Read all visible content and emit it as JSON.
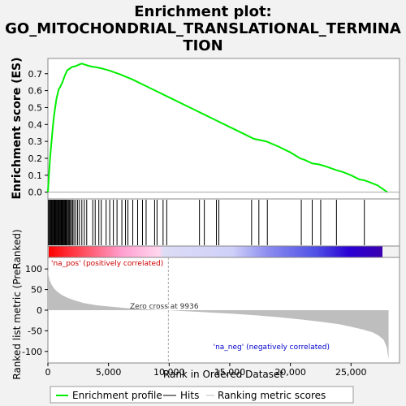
{
  "title_line1": "Enrichment plot:",
  "title_line2": "GO_MITOCHONDRIAL_TRANSLATIONAL_TERMINA",
  "title_line3": "TION",
  "annotations": {
    "pos": "'na_pos' (positively correlated)",
    "neg": "'na_neg' (negatively correlated)",
    "zero": "Zero cross at 9936"
  },
  "legend": {
    "profile": "Enrichment profile",
    "hits": "Hits",
    "metric": "Ranking metric scores"
  },
  "colors": {
    "profile": "#00ee00",
    "metric_fill": "#bebebe",
    "pos_text": "#cc0000",
    "neg_text": "#0000cc"
  },
  "chart_data": [
    {
      "type": "line",
      "name": "enrichment-profile",
      "ylabel": "Enrichment score (ES)",
      "xlim": [
        0,
        29000
      ],
      "ylim": [
        -0.04,
        0.79
      ],
      "yticks": [
        0.0,
        0.1,
        0.2,
        0.3,
        0.4,
        0.5,
        0.6,
        0.7
      ],
      "ytick_labels": [
        "0.0",
        "0.1",
        "0.2",
        "0.3",
        "0.4",
        "0.5",
        "0.6",
        "0.7"
      ],
      "x": [
        0,
        100,
        200,
        300,
        400,
        500,
        600,
        700,
        800,
        900,
        1000,
        1200,
        1400,
        1600,
        1800,
        2000,
        2300,
        2600,
        2800,
        3000,
        3300,
        3600,
        4000,
        4500,
        5000,
        6000,
        7000,
        8000,
        9000,
        10000,
        11000,
        12000,
        13000,
        14000,
        15000,
        16000,
        17000,
        18000,
        19000,
        20000,
        20800,
        21200,
        21800,
        22300,
        22800,
        23400,
        23800,
        24300,
        25000,
        25700,
        26100,
        26500,
        27200,
        28000
      ],
      "y": [
        0.0,
        0.12,
        0.22,
        0.3,
        0.38,
        0.45,
        0.5,
        0.55,
        0.58,
        0.61,
        0.62,
        0.65,
        0.69,
        0.72,
        0.73,
        0.74,
        0.745,
        0.755,
        0.76,
        0.755,
        0.748,
        0.742,
        0.738,
        0.73,
        0.72,
        0.695,
        0.665,
        0.63,
        0.595,
        0.56,
        0.525,
        0.49,
        0.455,
        0.42,
        0.385,
        0.35,
        0.315,
        0.3,
        0.27,
        0.235,
        0.2,
        0.19,
        0.17,
        0.165,
        0.155,
        0.14,
        0.13,
        0.12,
        0.1,
        0.075,
        0.07,
        0.06,
        0.04,
        0.0
      ]
    },
    {
      "type": "scatter",
      "name": "hits",
      "x": [
        50,
        120,
        180,
        240,
        300,
        360,
        420,
        480,
        540,
        600,
        660,
        720,
        780,
        840,
        900,
        960,
        1020,
        1080,
        1140,
        1200,
        1260,
        1320,
        1380,
        1440,
        1500,
        1560,
        1620,
        1700,
        1780,
        1860,
        1950,
        2050,
        2150,
        2300,
        2450,
        2600,
        2800,
        3000,
        3200,
        3700,
        3900,
        4200,
        4400,
        4800,
        5100,
        5400,
        5700,
        6100,
        6400,
        6600,
        7000,
        7400,
        7800,
        8100,
        8800,
        9000,
        9500,
        9800,
        12500,
        12900,
        13900,
        14100,
        16800,
        17400,
        18100,
        20900,
        21800,
        22500,
        23800,
        26100
      ]
    },
    {
      "type": "area",
      "name": "ranking-metric",
      "xlabel": "Rank in Ordered Dataset",
      "ylabel": "Ranked list metric (PreRanked)",
      "xlim": [
        0,
        29000
      ],
      "ylim": [
        -128,
        128
      ],
      "xticks": [
        0,
        5000,
        10000,
        15000,
        20000,
        25000
      ],
      "xtick_labels": [
        "0",
        "5,000",
        "10,000",
        "15,000",
        "20,000",
        "25,000"
      ],
      "yticks": [
        100,
        50,
        0,
        -50,
        -100
      ],
      "ytick_labels": [
        "100",
        "50",
        "0",
        "-50",
        "-100"
      ],
      "zero_cross": 9936,
      "x": [
        0,
        50,
        150,
        300,
        500,
        800,
        1200,
        1700,
        2300,
        3000,
        4000,
        5000,
        6500,
        8000,
        9000,
        9936,
        11000,
        13000,
        15000,
        17000,
        19000,
        21000,
        22500,
        24000,
        25000,
        26000,
        26800,
        27300,
        27700,
        27950,
        28100
      ],
      "y": [
        100,
        85,
        72,
        62,
        53,
        44,
        36,
        29,
        23,
        17,
        12,
        9,
        5,
        2.5,
        1,
        0,
        -2,
        -5,
        -8,
        -12,
        -17,
        -23,
        -28,
        -34,
        -40,
        -47,
        -54,
        -62,
        -72,
        -90,
        -120
      ]
    }
  ]
}
